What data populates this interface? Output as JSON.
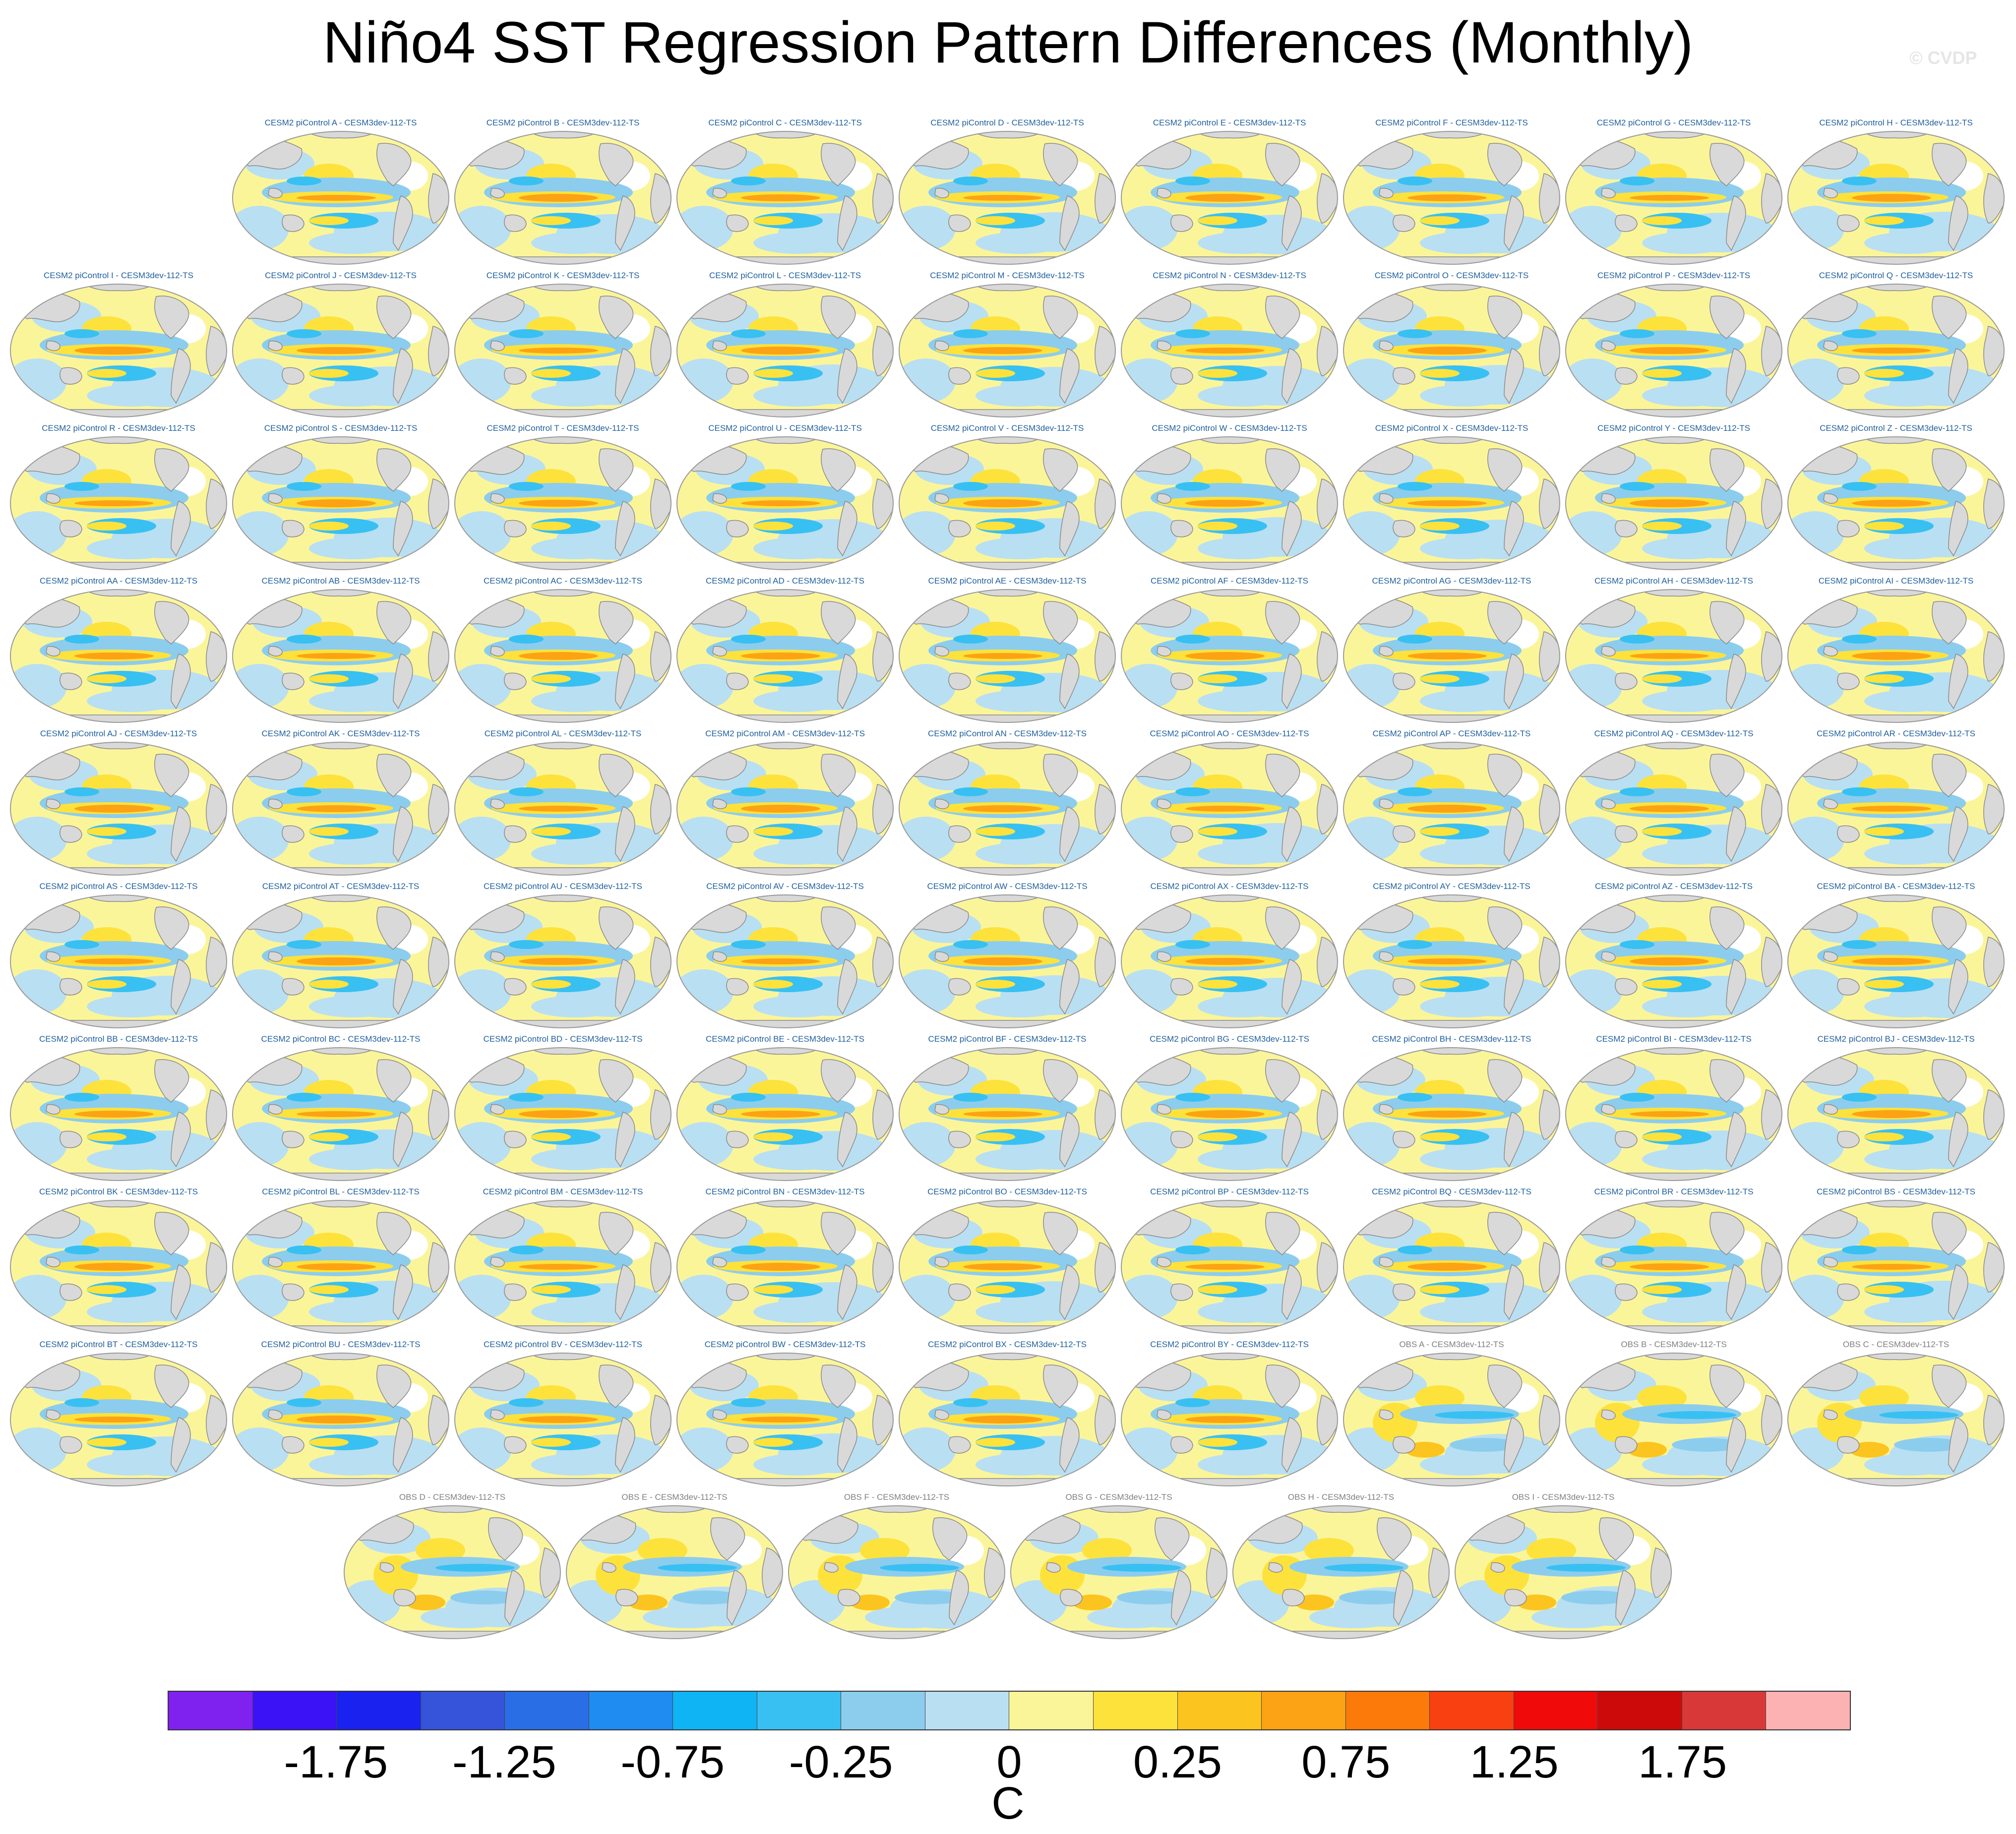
{
  "title": "Niño4 SST Regression Pattern Differences (Monthly)",
  "watermark": "© CVDP",
  "panels": {
    "rows": [
      [
        "CESM2 piControl A - CESM3dev-112-TS",
        "CESM2 piControl B - CESM3dev-112-TS",
        "CESM2 piControl C - CESM3dev-112-TS",
        "CESM2 piControl D - CESM3dev-112-TS",
        "CESM2 piControl E - CESM3dev-112-TS",
        "CESM2 piControl F - CESM3dev-112-TS",
        "CESM2 piControl G - CESM3dev-112-TS",
        "CESM2 piControl H - CESM3dev-112-TS"
      ],
      [
        "CESM2 piControl I - CESM3dev-112-TS",
        "CESM2 piControl J - CESM3dev-112-TS",
        "CESM2 piControl K - CESM3dev-112-TS",
        "CESM2 piControl L - CESM3dev-112-TS",
        "CESM2 piControl M - CESM3dev-112-TS",
        "CESM2 piControl N - CESM3dev-112-TS",
        "CESM2 piControl O - CESM3dev-112-TS",
        "CESM2 piControl P - CESM3dev-112-TS",
        "CESM2 piControl Q - CESM3dev-112-TS"
      ],
      [
        "CESM2 piControl R - CESM3dev-112-TS",
        "CESM2 piControl S - CESM3dev-112-TS",
        "CESM2 piControl T - CESM3dev-112-TS",
        "CESM2 piControl U - CESM3dev-112-TS",
        "CESM2 piControl V - CESM3dev-112-TS",
        "CESM2 piControl W - CESM3dev-112-TS",
        "CESM2 piControl X - CESM3dev-112-TS",
        "CESM2 piControl Y - CESM3dev-112-TS",
        "CESM2 piControl Z - CESM3dev-112-TS"
      ],
      [
        "CESM2 piControl AA - CESM3dev-112-TS",
        "CESM2 piControl AB - CESM3dev-112-TS",
        "CESM2 piControl AC - CESM3dev-112-TS",
        "CESM2 piControl AD - CESM3dev-112-TS",
        "CESM2 piControl AE - CESM3dev-112-TS",
        "CESM2 piControl AF - CESM3dev-112-TS",
        "CESM2 piControl AG - CESM3dev-112-TS",
        "CESM2 piControl AH - CESM3dev-112-TS",
        "CESM2 piControl AI - CESM3dev-112-TS"
      ],
      [
        "CESM2 piControl AJ - CESM3dev-112-TS",
        "CESM2 piControl AK - CESM3dev-112-TS",
        "CESM2 piControl AL - CESM3dev-112-TS",
        "CESM2 piControl AM - CESM3dev-112-TS",
        "CESM2 piControl AN - CESM3dev-112-TS",
        "CESM2 piControl AO - CESM3dev-112-TS",
        "CESM2 piControl AP - CESM3dev-112-TS",
        "CESM2 piControl AQ - CESM3dev-112-TS",
        "CESM2 piControl AR - CESM3dev-112-TS"
      ],
      [
        "CESM2 piControl AS - CESM3dev-112-TS",
        "CESM2 piControl AT - CESM3dev-112-TS",
        "CESM2 piControl AU - CESM3dev-112-TS",
        "CESM2 piControl AV - CESM3dev-112-TS",
        "CESM2 piControl AW - CESM3dev-112-TS",
        "CESM2 piControl AX - CESM3dev-112-TS",
        "CESM2 piControl AY - CESM3dev-112-TS",
        "CESM2 piControl AZ - CESM3dev-112-TS",
        "CESM2 piControl BA - CESM3dev-112-TS"
      ],
      [
        "CESM2 piControl BB - CESM3dev-112-TS",
        "CESM2 piControl BC - CESM3dev-112-TS",
        "CESM2 piControl BD - CESM3dev-112-TS",
        "CESM2 piControl BE - CESM3dev-112-TS",
        "CESM2 piControl BF - CESM3dev-112-TS",
        "CESM2 piControl BG - CESM3dev-112-TS",
        "CESM2 piControl BH - CESM3dev-112-TS",
        "CESM2 piControl BI - CESM3dev-112-TS",
        "CESM2 piControl BJ - CESM3dev-112-TS"
      ],
      [
        "CESM2 piControl BK - CESM3dev-112-TS",
        "CESM2 piControl BL - CESM3dev-112-TS",
        "CESM2 piControl BM - CESM3dev-112-TS",
        "CESM2 piControl BN - CESM3dev-112-TS",
        "CESM2 piControl BO - CESM3dev-112-TS",
        "CESM2 piControl BP - CESM3dev-112-TS",
        "CESM2 piControl BQ - CESM3dev-112-TS",
        "CESM2 piControl BR - CESM3dev-112-TS",
        "CESM2 piControl BS - CESM3dev-112-TS"
      ],
      [
        "CESM2 piControl BT - CESM3dev-112-TS",
        "CESM2 piControl BU - CESM3dev-112-TS",
        "CESM2 piControl BV - CESM3dev-112-TS",
        "CESM2 piControl BW - CESM3dev-112-TS",
        "CESM2 piControl BX - CESM3dev-112-TS",
        "CESM2 piControl BY - CESM3dev-112-TS",
        "OBS A - CESM3dev-112-TS",
        "OBS B - CESM3dev-112-TS",
        "OBS C - CESM3dev-112-TS"
      ],
      [
        "OBS D - CESM3dev-112-TS",
        "OBS E - CESM3dev-112-TS",
        "OBS F - CESM3dev-112-TS",
        "OBS G - CESM3dev-112-TS",
        "OBS H - CESM3dev-112-TS",
        "OBS I - CESM3dev-112-TS"
      ]
    ]
  },
  "colorbar": {
    "colors": [
      "#7f22f0",
      "#3a12f5",
      "#1a22f0",
      "#3554d9",
      "#2a6ee6",
      "#1e8cf0",
      "#0fb4f5",
      "#38c0f2",
      "#8ccdee",
      "#b9dff2",
      "#fbf59a",
      "#fde23c",
      "#fcc41e",
      "#fba314",
      "#fb7a0a",
      "#f84010",
      "#f00a0a",
      "#cc0a0a",
      "#d83838",
      "#fcb2b2"
    ],
    "tick_labels": [
      "-1.75",
      "-1.25",
      "-0.75",
      "-0.25",
      "0",
      "0.25",
      "0.75",
      "1.25",
      "1.75"
    ],
    "tick_boundaries": [
      2,
      4,
      6,
      8,
      10,
      12,
      14,
      16,
      18
    ],
    "unit": "C"
  },
  "map_colors": {
    "land": "#d9d9d9",
    "coast": "#8a8a8a",
    "neutral": "#ffffff",
    "warm_light": "#fbf59a",
    "warm": "#fde23c",
    "warm_strong": "#fcc41e",
    "warm_core": "#fba314",
    "cool_light": "#b9dff2",
    "cool": "#8ccdee",
    "cool_strong": "#38c0f2",
    "cool_core": "#1e8cf0"
  }
}
